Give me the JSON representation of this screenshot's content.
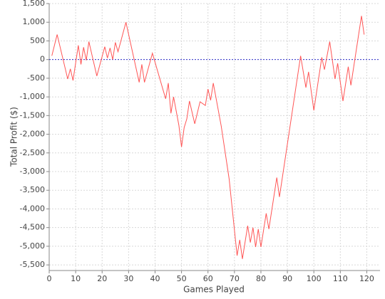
{
  "chart_data": {
    "type": "line",
    "x_label": "Games Played",
    "y_label": "Total Profit ($)",
    "color": "#ff5555",
    "x": [
      1,
      3,
      7,
      8,
      9,
      11,
      12,
      13,
      14,
      15,
      18,
      21,
      22,
      23,
      24,
      25,
      26,
      29,
      34,
      35,
      36,
      39,
      44,
      45,
      46,
      47,
      49,
      50,
      51,
      52,
      53,
      55,
      57,
      59,
      60,
      61,
      62,
      65,
      68,
      71,
      72,
      73,
      75,
      76,
      77,
      78,
      79,
      80,
      82,
      83,
      86,
      87,
      95,
      97,
      98,
      100,
      103,
      104,
      106,
      108,
      109,
      111,
      113,
      114,
      118,
      119
    ],
    "values": [
      100,
      670,
      -520,
      -250,
      -560,
      380,
      -130,
      330,
      -20,
      480,
      -440,
      345,
      40,
      310,
      0,
      460,
      210,
      1000,
      -610,
      -130,
      -610,
      170,
      -1050,
      -630,
      -1440,
      -1000,
      -1760,
      -2340,
      -1820,
      -1590,
      -1110,
      -1720,
      -1130,
      -1230,
      -790,
      -1090,
      -630,
      -1780,
      -3200,
      -5250,
      -4830,
      -5340,
      -4450,
      -4900,
      -4500,
      -5020,
      -4540,
      -5020,
      -4120,
      -4540,
      -3160,
      -3680,
      100,
      -750,
      -330,
      -1360,
      60,
      -270,
      480,
      -520,
      -100,
      -1110,
      -190,
      -690,
      1170,
      670
    ],
    "reference_line": 0,
    "reference_color": "#3333cc",
    "xlim": [
      0,
      125
    ],
    "xticks": [
      0,
      10,
      20,
      30,
      40,
      50,
      60,
      70,
      80,
      90,
      100,
      110,
      120
    ],
    "ylim": [
      -5650,
      1500
    ],
    "yticks": [
      {
        "value": 1500,
        "label": "1,500"
      },
      {
        "value": 1000,
        "label": "1,000"
      },
      500,
      0,
      -500,
      {
        "value": -1000,
        "label": "-1,000"
      },
      {
        "value": -1500,
        "label": "-1,500"
      },
      {
        "value": -2000,
        "label": "-2,000"
      },
      {
        "value": -2500,
        "label": "-2,500"
      },
      {
        "value": -3000,
        "label": "-3,000"
      },
      {
        "value": -3500,
        "label": "-3,500"
      },
      {
        "value": -4000,
        "label": "-4,000"
      },
      {
        "value": -4500,
        "label": "-4,500"
      },
      {
        "value": -5000,
        "label": "-5,000"
      },
      {
        "value": -5500,
        "label": "-5,500"
      }
    ],
    "grid": true
  }
}
